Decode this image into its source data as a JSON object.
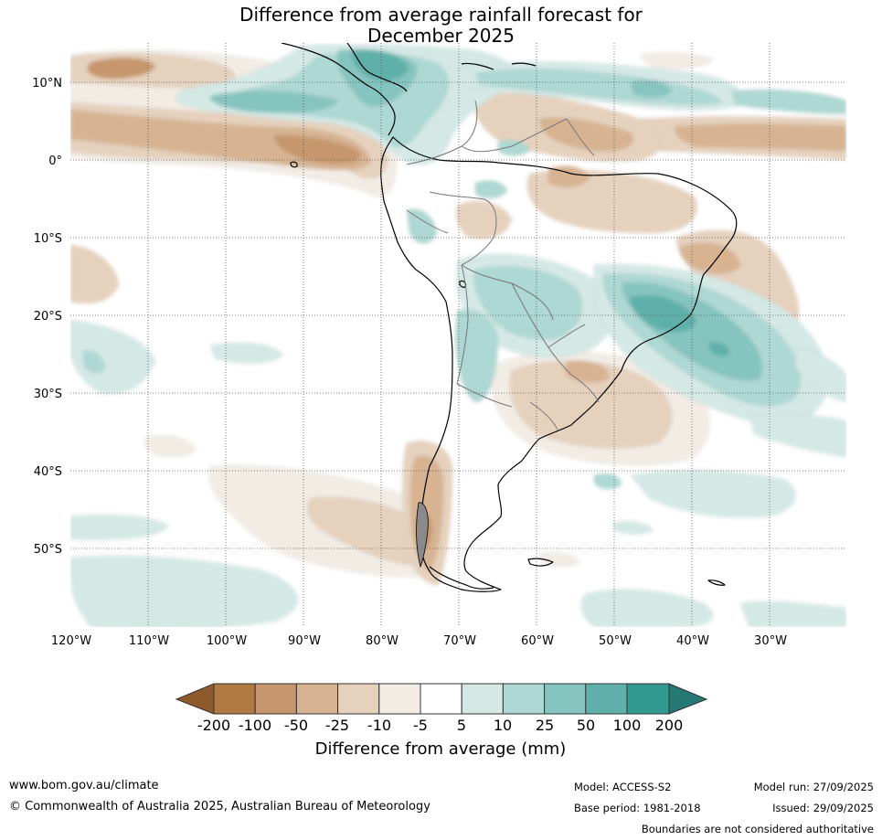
{
  "title": {
    "line1": "Difference from average rainfall forecast for",
    "line2": "December 2025"
  },
  "map": {
    "lat_labels": [
      "10°N",
      "0°",
      "10°S",
      "20°S",
      "30°S",
      "40°S",
      "50°S"
    ],
    "lon_labels": [
      "120°W",
      "110°W",
      "100°W",
      "90°W",
      "80°W",
      "70°W",
      "60°W",
      "50°W",
      "40°W",
      "30°W"
    ],
    "colors": {
      "dry_200": "#8e5a2c",
      "dry_100": "#b07a43",
      "dry_50": "#c7966c",
      "dry_25": "#d7b392",
      "dry_10": "#e6d1bd",
      "dry_5": "#f2ece5",
      "neutral": "#ffffff",
      "wet_5": "#d4e9e6",
      "wet_10": "#aed8d3",
      "wet_25": "#86c4bf",
      "wet_50": "#5fb0ab",
      "wet_100": "#329990",
      "wet_200": "#257873"
    }
  },
  "legend": {
    "tick_labels": [
      "-200",
      "-100",
      "-50",
      "-25",
      "-10",
      "-5",
      "5",
      "10",
      "25",
      "50",
      "100",
      "200"
    ],
    "label": "Difference from average (mm)"
  },
  "footer": {
    "website": "www.bom.gov.au/climate",
    "copyright": "© Commonwealth of Australia 2025, Australian Bureau of Meteorology",
    "model": "Model: ACCESS-S2",
    "base_period": "Base period: 1981-2018",
    "model_run": "Model run: 27/09/2025",
    "issued": "Issued: 29/09/2025",
    "disclaimer": "Boundaries are not considered authoritative"
  }
}
